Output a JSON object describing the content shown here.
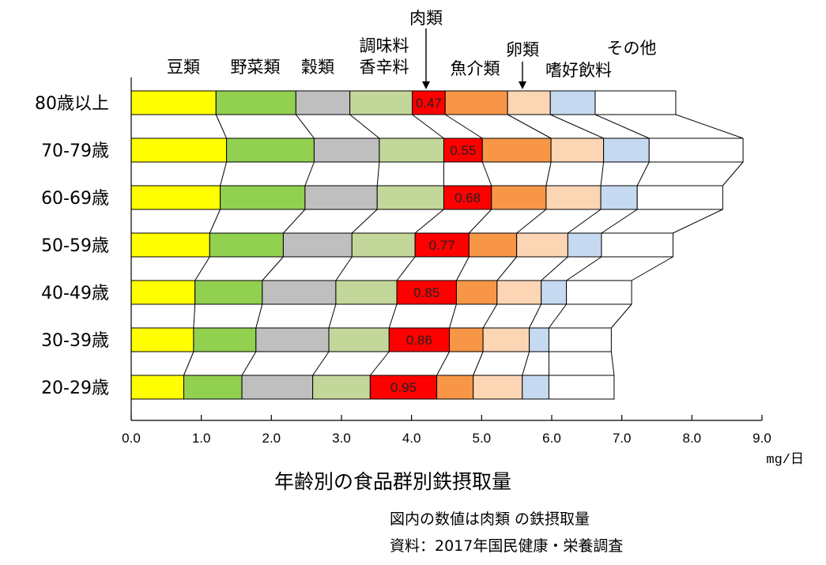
{
  "chart_data": {
    "type": "bar",
    "orientation": "horizontal",
    "stacked": true,
    "title": "年齢別の食品群別鉄摂取量",
    "xlabel": "",
    "unit": "mg/日",
    "xlim": [
      0,
      9.0
    ],
    "x_ticks": [
      "0.0",
      "1.0",
      "2.0",
      "3.0",
      "4.0",
      "5.0",
      "6.0",
      "7.0",
      "8.0",
      "9.0"
    ],
    "grid": false,
    "categories": [
      "80歳以上",
      "70-79歳",
      "60-69歳",
      "50-59歳",
      "40-49歳",
      "30-39歳",
      "20-29歳"
    ],
    "series": [
      {
        "name": "豆類",
        "color": "#ffff00",
        "values": [
          1.21,
          1.36,
          1.27,
          1.12,
          0.91,
          0.89,
          0.75
        ]
      },
      {
        "name": "野菜類",
        "color": "#92d050",
        "values": [
          1.14,
          1.25,
          1.21,
          1.05,
          0.96,
          0.89,
          0.83
        ]
      },
      {
        "name": "穀類",
        "color": "#bfbfbf",
        "values": [
          0.77,
          0.93,
          1.03,
          0.98,
          1.05,
          1.04,
          1.01
        ]
      },
      {
        "name": "調味料 香辛料",
        "color": "#c4d79b",
        "values": [
          0.89,
          0.92,
          0.95,
          0.9,
          0.87,
          0.86,
          0.82
        ]
      },
      {
        "name": "肉類",
        "color": "#ff0000",
        "values": [
          0.47,
          0.55,
          0.68,
          0.77,
          0.85,
          0.86,
          0.95
        ]
      },
      {
        "name": "魚介類",
        "color": "#f79646",
        "values": [
          0.89,
          0.98,
          0.78,
          0.68,
          0.58,
          0.48,
          0.52
        ]
      },
      {
        "name": "卵類",
        "color": "#fcd5b4",
        "values": [
          0.61,
          0.75,
          0.78,
          0.73,
          0.63,
          0.66,
          0.7
        ]
      },
      {
        "name": "嗜好飲料",
        "color": "#c5d9f1",
        "values": [
          0.64,
          0.65,
          0.52,
          0.48,
          0.36,
          0.28,
          0.38
        ]
      },
      {
        "name": "その他",
        "color": "#ffffff",
        "values": [
          1.15,
          1.34,
          1.22,
          1.02,
          0.93,
          0.89,
          0.93
        ]
      }
    ],
    "meat_labels": [
      "0.47",
      "0.55",
      "0.68",
      "0.77",
      "0.85",
      "0.86",
      "0.95"
    ]
  },
  "notes": {
    "line1": "図内の数値は肉類 の鉄摂取量",
    "line2": "資料：2017年国民健康・栄養調査"
  }
}
